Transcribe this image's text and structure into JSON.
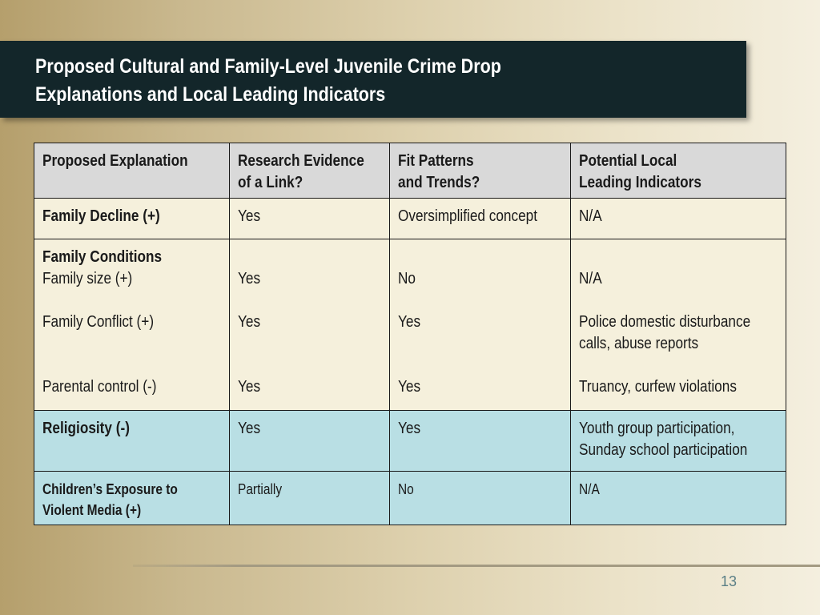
{
  "slide": {
    "title_line1": "Proposed Cultural and Family-Level Juvenile Crime Drop",
    "title_line2": "Explanations and Local Leading Indicators",
    "page_number": "13"
  },
  "table": {
    "headers": {
      "c1": "Proposed Explanation",
      "c2_l1": "Research Evidence",
      "c2_l2": "of a Link?",
      "c3_l1": "Fit Patterns",
      "c3_l2": "and Trends?",
      "c4_l1": "Potential Local",
      "c4_l2": "Leading Indicators"
    },
    "row1": {
      "explanation": "Family Decline  (+)",
      "evidence": "Yes",
      "fit": "Oversimplified concept",
      "indicators": "N/A"
    },
    "row2": {
      "heading": "Family Conditions",
      "sub1": {
        "explanation": "Family size (+)",
        "evidence": "Yes",
        "fit": "No",
        "indicators": "N/A"
      },
      "sub2": {
        "explanation": "Family Conflict (+)",
        "evidence": "Yes",
        "fit": "Yes",
        "indicators_l1": "Police domestic disturbance",
        "indicators_l2": "calls, abuse reports"
      },
      "sub3": {
        "explanation": "Parental control (-)",
        "evidence": "Yes",
        "fit": "Yes",
        "indicators": "Truancy, curfew violations"
      }
    },
    "row3": {
      "explanation": "Religiosity (-)",
      "evidence": "Yes",
      "fit": "Yes",
      "indicators_l1": "Youth group participation,",
      "indicators_l2": "Sunday school participation"
    },
    "row4": {
      "explanation_l1": "Children’s Exposure to",
      "explanation_l2": "Violent Media (+)",
      "evidence": "Partially",
      "fit": "No",
      "indicators": "N/A"
    }
  }
}
